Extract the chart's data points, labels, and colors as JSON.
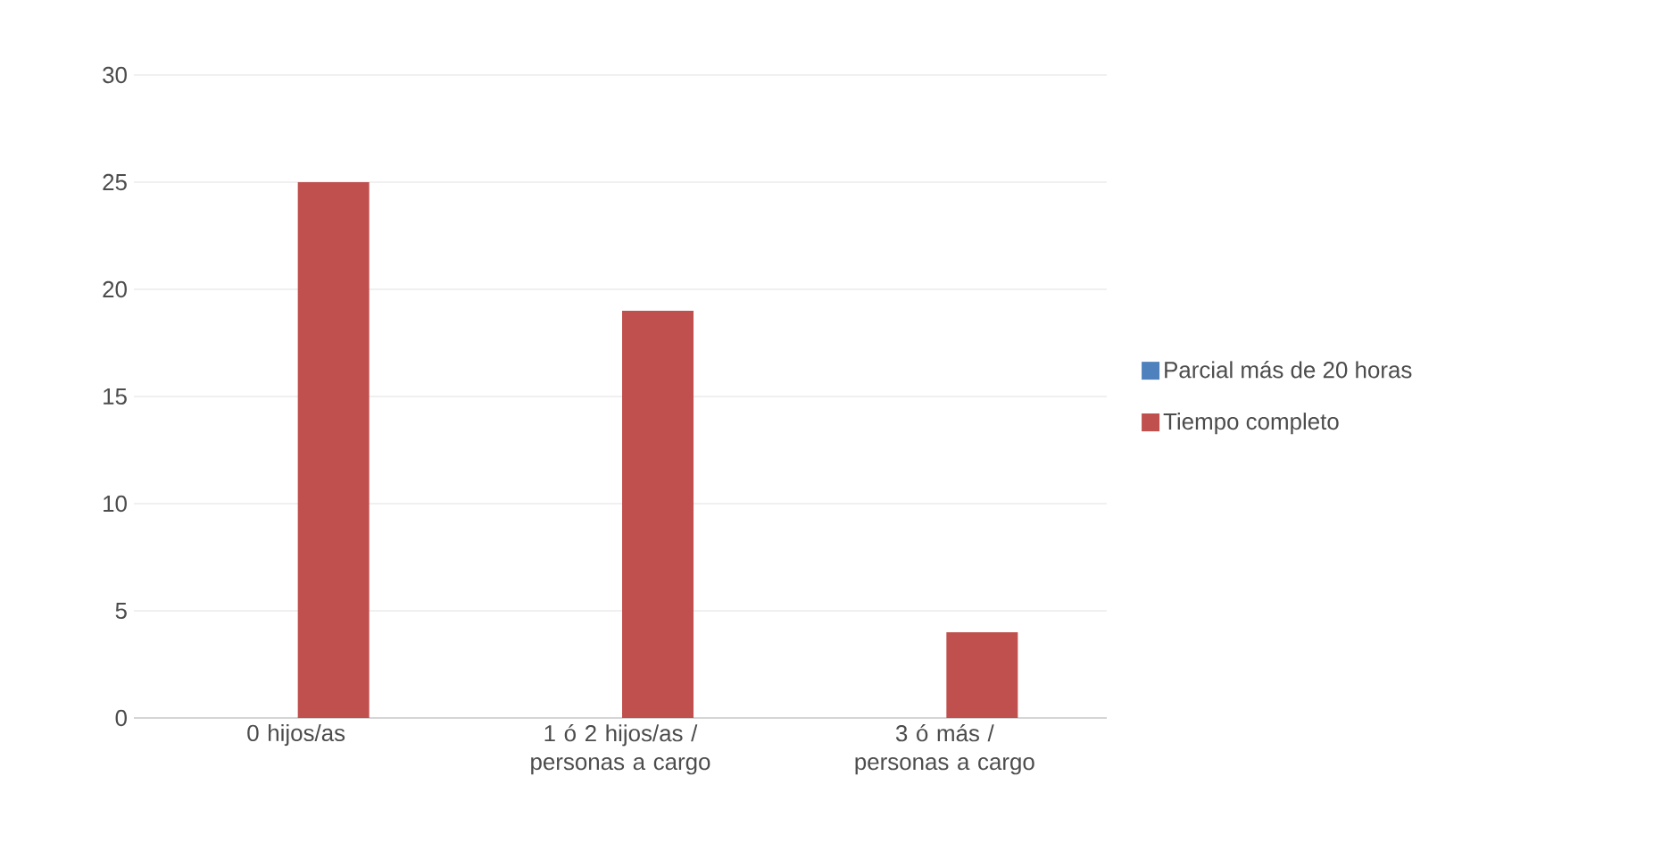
{
  "chart_data": {
    "type": "bar",
    "categories": [
      "0 hijos/as",
      "1 ó 2  hijos/as / personas a cargo",
      "3 ó más / personas a cargo"
    ],
    "series": [
      {
        "name": "Parcial más de 20 horas",
        "color": "#4f81bd",
        "values": [
          0,
          0,
          0
        ]
      },
      {
        "name": "Tiempo completo",
        "color": "#c0504d",
        "values": [
          25,
          19,
          4
        ]
      }
    ],
    "ylim": [
      0,
      30
    ],
    "yticks": [
      0,
      5,
      10,
      15,
      20,
      25,
      30
    ],
    "grid": "y",
    "legend": "right"
  }
}
